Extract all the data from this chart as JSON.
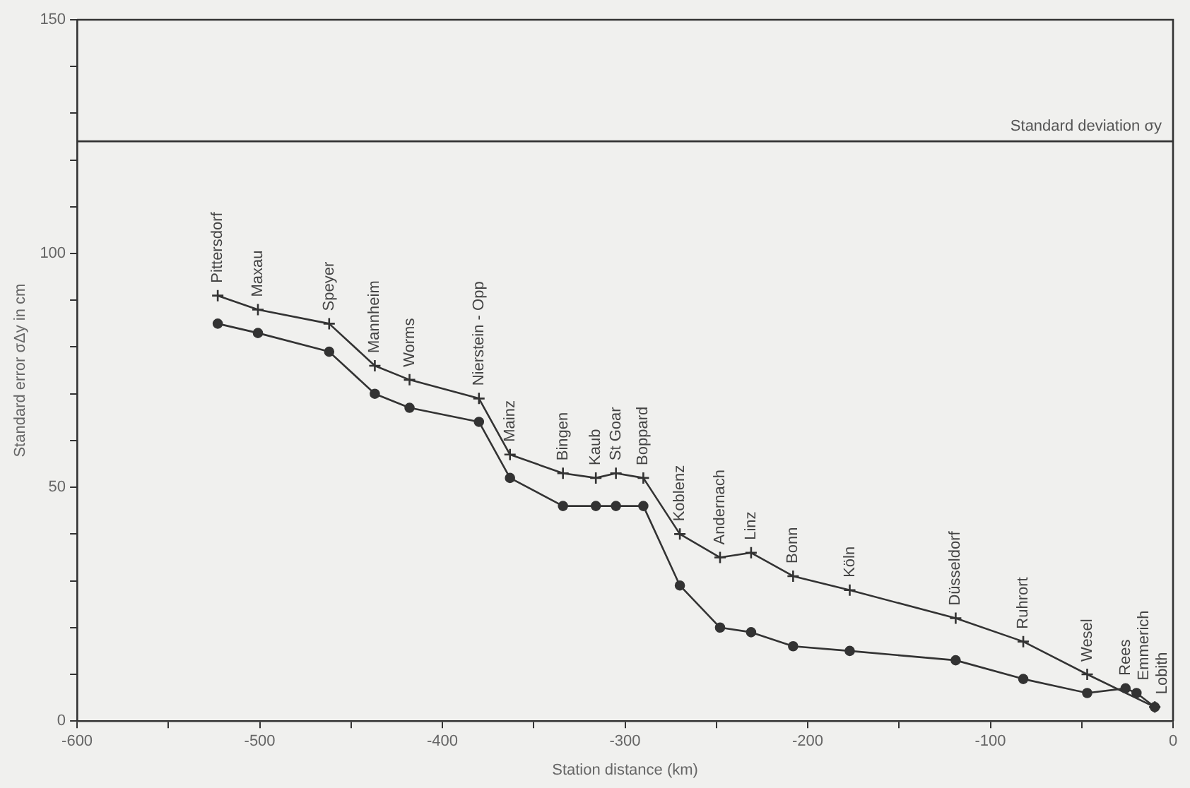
{
  "chart_data": {
    "type": "line",
    "xlabel": "Station distance (km)",
    "ylabel": "Standard error σΔy in cm",
    "xlim": [
      -600,
      0
    ],
    "ylim": [
      0,
      150
    ],
    "xticks": [
      -600,
      {
        "value": -550,
        "label": null
      },
      -500,
      {
        "value": -450,
        "label": null
      },
      -400,
      {
        "value": -350,
        "label": null
      },
      -300,
      {
        "value": -250,
        "label": null
      },
      -200,
      {
        "value": -150,
        "label": null
      },
      -100,
      {
        "value": -50,
        "label": null
      },
      0
    ],
    "yticks": [
      0,
      {
        "value": 10,
        "label": null
      },
      {
        "value": 20,
        "label": null
      },
      {
        "value": 30,
        "label": null
      },
      {
        "value": 40,
        "label": null
      },
      50,
      {
        "value": 60,
        "label": null
      },
      {
        "value": 70,
        "label": null
      },
      {
        "value": 80,
        "label": null
      },
      {
        "value": 90,
        "label": null
      },
      100,
      {
        "value": 110,
        "label": null
      },
      {
        "value": 120,
        "label": null
      },
      {
        "value": 130,
        "label": null
      },
      {
        "value": 140,
        "label": null
      },
      150
    ],
    "x": [
      -523,
      -501,
      -462,
      -437,
      -418,
      -380,
      -363,
      -334,
      -316,
      -305,
      -290,
      -270,
      -248,
      -231,
      -208,
      -177,
      -119,
      -82,
      -47,
      -26,
      -20,
      -10
    ],
    "series": [
      {
        "color": "#333333",
        "marker": "cross",
        "values": [
          91,
          88,
          85,
          76,
          73,
          69,
          57,
          53,
          52,
          53,
          52,
          40,
          35,
          36,
          31,
          28,
          22,
          17,
          10,
          null,
          null,
          3
        ]
      },
      {
        "color": "#333333",
        "marker": "circle",
        "values": [
          85,
          83,
          79,
          70,
          67,
          64,
          52,
          46,
          46,
          46,
          46,
          29,
          20,
          19,
          16,
          15,
          13,
          9,
          6,
          7,
          6,
          3
        ]
      }
    ],
    "ref_lines": [
      {
        "axis": "y",
        "value": 124,
        "label": "Standard deviation σy"
      }
    ],
    "annotations": [
      {
        "text": "Pittersdorf",
        "x": -523,
        "y": 91
      },
      {
        "text": "Maxau",
        "x": -501,
        "y": 88
      },
      {
        "text": "Speyer",
        "x": -462,
        "y": 85
      },
      {
        "text": "Mannheim",
        "x": -437,
        "y": 76
      },
      {
        "text": "Worms",
        "x": -418,
        "y": 73
      },
      {
        "text": "Nierstein - Opp",
        "x": -380,
        "y": 69
      },
      {
        "text": "Mainz",
        "x": -363,
        "y": 57
      },
      {
        "text": "Bingen",
        "x": -334,
        "y": 53
      },
      {
        "text": "Kaub",
        "x": -316,
        "y": 52
      },
      {
        "text": "St Goar",
        "x": -305,
        "y": 53
      },
      {
        "text": "Boppard",
        "x": -290,
        "y": 52
      },
      {
        "text": "Koblenz",
        "x": -270,
        "y": 40
      },
      {
        "text": "Andernach",
        "x": -248,
        "y": 35
      },
      {
        "text": "Linz",
        "x": -231,
        "y": 36
      },
      {
        "text": "Bonn",
        "x": -208,
        "y": 31
      },
      {
        "text": "Köln",
        "x": -177,
        "y": 28
      },
      {
        "text": "Düsseldorf",
        "x": -119,
        "y": 22
      },
      {
        "text": "Ruhrort",
        "x": -82,
        "y": 17
      },
      {
        "text": "Wesel",
        "x": -47,
        "y": 10
      },
      {
        "text": "Rees",
        "x": -26,
        "y": 7
      },
      {
        "text": "Emmerich",
        "x": -20,
        "y": 6
      },
      {
        "text": "Lobith",
        "x": -10,
        "y": 3
      }
    ],
    "grid": false,
    "legend": false
  }
}
